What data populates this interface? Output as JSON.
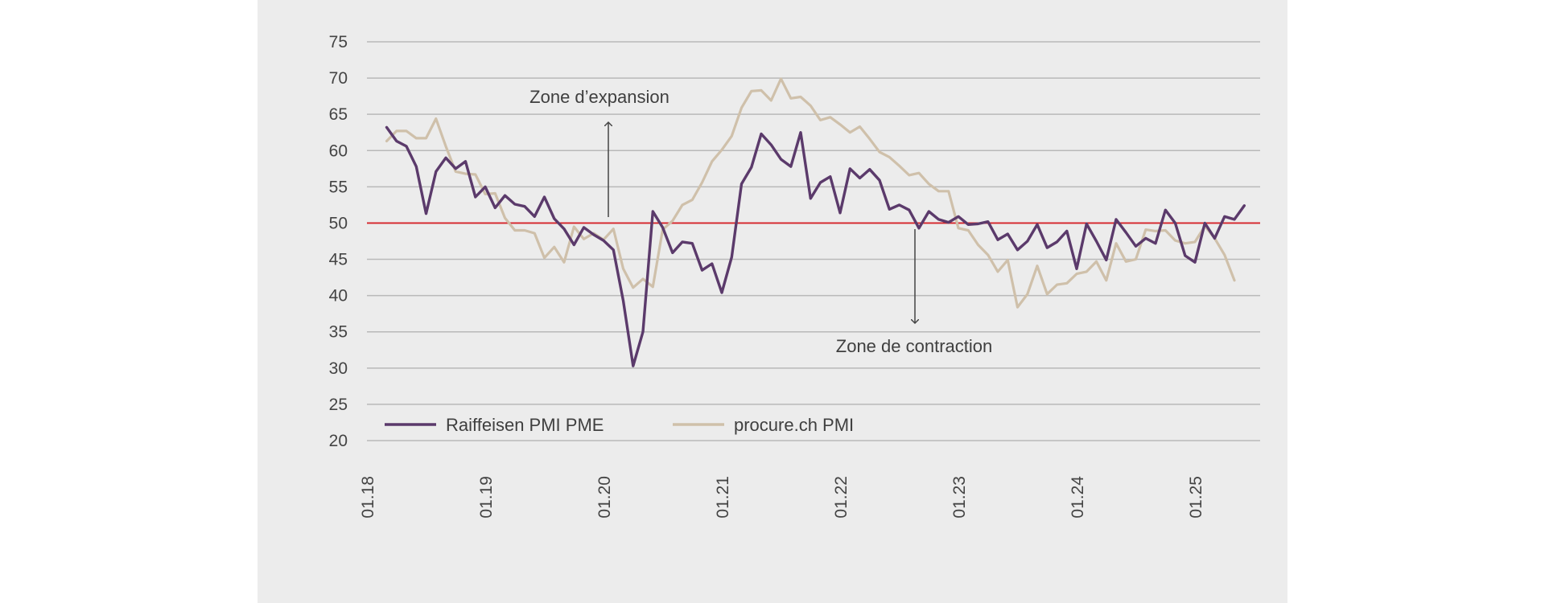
{
  "chart_data": {
    "type": "line",
    "x_tick_labels": [
      "01.18",
      "01.19",
      "01.20",
      "01.21",
      "01.22",
      "01.23",
      "01.24",
      "01.25"
    ],
    "ylim": [
      20,
      75
    ],
    "y_ticks": [
      20,
      25,
      30,
      35,
      40,
      45,
      50,
      55,
      60,
      65,
      70,
      75
    ],
    "grid": true,
    "reference_line": {
      "value": 50,
      "color": "#d6232a"
    },
    "annotations": [
      {
        "text": "Zone d’expansion",
        "direction": "up"
      },
      {
        "text": "Zone de contraction",
        "direction": "down"
      }
    ],
    "legend_position": "bottom-left",
    "series": [
      {
        "name": "Raiffeisen PMI PME",
        "color": "#5b3a6b",
        "start": "2018-03",
        "values": [
          63.2,
          61.3,
          60.6,
          57.8,
          51.3,
          57.1,
          59.0,
          57.5,
          58.5,
          53.6,
          55.0,
          52.1,
          53.8,
          52.6,
          52.3,
          50.9,
          53.6,
          50.6,
          49.2,
          47.0,
          49.4,
          48.4,
          47.6,
          46.3,
          39.3,
          30.3,
          35.0,
          51.6,
          49.4,
          45.9,
          47.4,
          47.2,
          43.5,
          44.4,
          40.4,
          45.3,
          55.4,
          57.7,
          62.3,
          60.8,
          58.8,
          57.8,
          62.5,
          53.4,
          55.6,
          56.4,
          51.4,
          57.5,
          56.2,
          57.4,
          55.9,
          51.9,
          52.5,
          51.8,
          49.3,
          51.6,
          50.5,
          50.1,
          50.9,
          49.8,
          49.9,
          50.2,
          47.7,
          48.5,
          46.3,
          47.5,
          49.8,
          46.6,
          47.4,
          48.9,
          43.7,
          49.9,
          47.5,
          44.9,
          50.5,
          48.7,
          46.8,
          47.9,
          47.2,
          51.8,
          50.0,
          45.5,
          44.6,
          50.0,
          47.9,
          50.9,
          50.5,
          52.4
        ]
      },
      {
        "name": "procure.ch PMI",
        "color": "#cfc0aa",
        "start": "2018-03",
        "values": [
          61.3,
          62.7,
          62.7,
          61.7,
          61.7,
          64.4,
          60.6,
          57.1,
          56.8,
          56.7,
          54.0,
          54.1,
          50.7,
          49.0,
          49.0,
          48.6,
          45.2,
          46.7,
          44.6,
          49.5,
          47.8,
          48.6,
          47.7,
          49.2,
          43.7,
          41.1,
          42.3,
          41.2,
          49.1,
          50.3,
          52.5,
          53.2,
          55.6,
          58.5,
          60.1,
          62.0,
          65.9,
          68.2,
          68.3,
          66.9,
          69.9,
          67.2,
          67.4,
          66.2,
          64.2,
          64.6,
          63.6,
          62.5,
          63.3,
          61.6,
          59.8,
          59.1,
          57.9,
          56.6,
          56.9,
          55.4,
          54.4,
          54.4,
          49.3,
          49.0,
          47.0,
          45.6,
          43.3,
          44.9,
          38.4,
          40.2,
          44.1,
          40.2,
          41.5,
          41.7,
          43.0,
          43.3,
          44.7,
          42.1,
          47.2,
          44.7,
          45.0,
          49.1,
          48.9,
          49.0,
          47.6,
          47.2,
          47.4,
          49.6,
          47.9,
          45.6,
          42.1
        ]
      }
    ]
  }
}
